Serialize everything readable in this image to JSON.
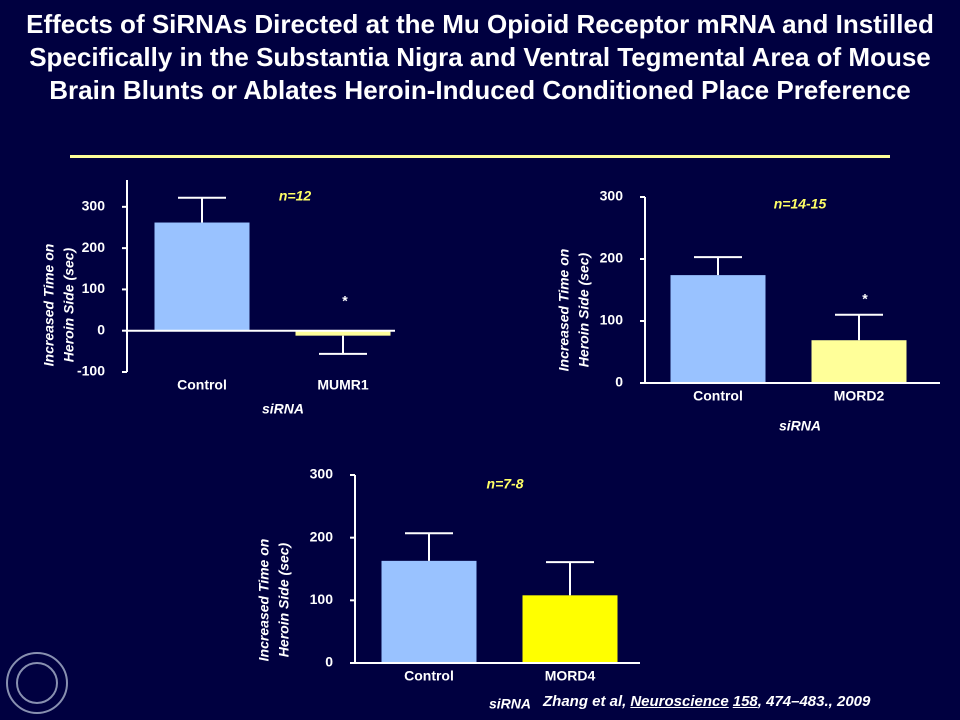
{
  "title": "Effects of SiRNAs Directed at the Mu Opioid Receptor mRNA and Instilled Specifically in the Substantia Nigra and Ventral Tegmental Area of Mouse Brain Blunts or Ablates Heroin-Induced Conditioned Place Preference",
  "citation": [
    "Zhang et al,",
    "Neuroscience",
    "158",
    ", 474–483., 2009"
  ],
  "chart_data": [
    {
      "type": "bar",
      "categories": [
        "Control",
        "MUMR1"
      ],
      "values": [
        262,
        -12
      ],
      "errors": [
        60,
        44
      ],
      "colors": [
        "#99c2ff",
        "#ffff99"
      ],
      "ylim": [
        -100,
        365
      ],
      "yticks": [
        -100,
        0,
        100,
        200,
        300
      ],
      "xlabel": "siRNA",
      "ylabel": [
        "Increased Time on",
        "Heroin Side (sec)"
      ],
      "n_label": "n=12",
      "significance": "*"
    },
    {
      "type": "bar",
      "categories": [
        "Control",
        "MORD2"
      ],
      "values": [
        174,
        69
      ],
      "errors": [
        29,
        41
      ],
      "colors": [
        "#99c2ff",
        "#ffff99"
      ],
      "ylim": [
        0,
        300
      ],
      "yticks": [
        0,
        100,
        200,
        300
      ],
      "xlabel": "siRNA",
      "ylabel": [
        "Increased Time on",
        "Heroin Side (sec)"
      ],
      "n_label": "n=14-15",
      "significance": "*"
    },
    {
      "type": "bar",
      "categories": [
        "Control",
        "MORD4"
      ],
      "values": [
        163,
        108
      ],
      "errors": [
        44,
        53
      ],
      "colors": [
        "#99c2ff",
        "#ffff00"
      ],
      "ylim": [
        0,
        300
      ],
      "yticks": [
        0,
        100,
        200,
        300
      ],
      "xlabel": "siRNA",
      "ylabel": [
        "Increased Time on",
        "Heroin Side (sec)"
      ],
      "n_label": "n=7-8"
    }
  ]
}
